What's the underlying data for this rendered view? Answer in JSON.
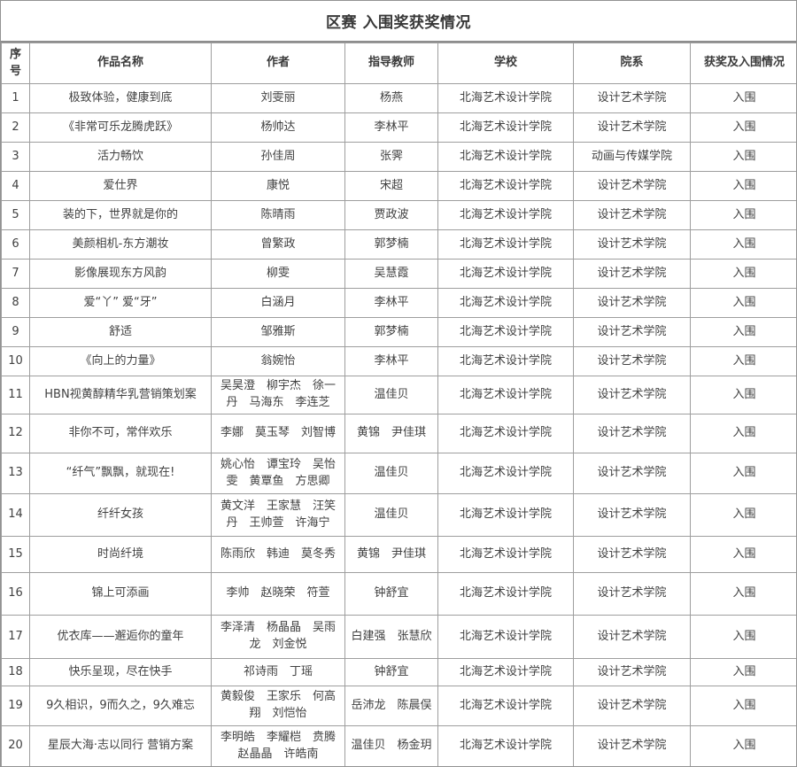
{
  "title": "区赛 入围奖获奖情况",
  "colors": {
    "background": "#ffffff",
    "text": "#3f3f3f",
    "grid_border": "#9e9e9e",
    "outer_border": "#929292"
  },
  "table": {
    "headers": [
      "序号",
      "作品名称",
      "作者",
      "指导教师",
      "学校",
      "院系",
      "获奖及入围情况"
    ],
    "rows": [
      [
        "1",
        "极致体验，健康到底",
        "刘雯丽",
        "杨燕",
        "北海艺术设计学院",
        "设计艺术学院",
        "入围"
      ],
      [
        "2",
        "《非常可乐龙腾虎跃》",
        "杨帅达",
        "李林平",
        "北海艺术设计学院",
        "设计艺术学院",
        "入围"
      ],
      [
        "3",
        "活力畅饮",
        "孙佳周",
        "张霁",
        "北海艺术设计学院",
        "动画与传媒学院",
        "入围"
      ],
      [
        "4",
        "爱仕界",
        "康悦",
        "宋超",
        "北海艺术设计学院",
        "设计艺术学院",
        "入围"
      ],
      [
        "5",
        "装的下，世界就是你的",
        "陈晴雨",
        "贾政波",
        "北海艺术设计学院",
        "设计艺术学院",
        "入围"
      ],
      [
        "6",
        "美颜相机-东方潮妆",
        "曾繁政",
        "郭梦楠",
        "北海艺术设计学院",
        "设计艺术学院",
        "入围"
      ],
      [
        "7",
        "影像展现东方风韵",
        "柳雯",
        "吴慧霞",
        "北海艺术设计学院",
        "设计艺术学院",
        "入围"
      ],
      [
        "8",
        "爱“丫” 爱“牙”",
        "白涵月",
        "李林平",
        "北海艺术设计学院",
        "设计艺术学院",
        "入围"
      ],
      [
        "9",
        "舒适",
        "邹雅斯",
        "郭梦楠",
        "北海艺术设计学院",
        "设计艺术学院",
        "入围"
      ],
      [
        "10",
        "《向上的力量》",
        "翁婉怡",
        "李林平",
        "北海艺术设计学院",
        "设计艺术学院",
        "入围"
      ],
      [
        "11",
        "HBN视黄醇精华乳营销策划案",
        "吴昊澄　柳宇杰　徐一丹　马海东　李连芝",
        "温佳贝",
        "北海艺术设计学院",
        "设计艺术学院",
        "入围"
      ],
      [
        "12",
        "非你不可，常伴欢乐",
        "李娜　莫玉琴　刘智博",
        "黄锦　尹佳琪",
        "北海艺术设计学院",
        "设计艺术学院",
        "入围"
      ],
      [
        "13",
        "“纤气”飘飘，就现在!",
        "姚心怡　谭宝玲　吴怡雯　黄覃鱼　方思卿",
        "温佳贝",
        "北海艺术设计学院",
        "设计艺术学院",
        "入围"
      ],
      [
        "14",
        "纤纤女孩",
        "黄文洋　王家慧　汪笑丹　王帅萱　许海宁",
        "温佳贝",
        "北海艺术设计学院",
        "设计艺术学院",
        "入围"
      ],
      [
        "15",
        "时尚纤境",
        "陈雨欣　韩迪　莫冬秀",
        "黄锦　尹佳琪",
        "北海艺术设计学院",
        "设计艺术学院",
        "入围"
      ],
      [
        "16",
        "锦上可添画",
        "李帅　赵晓荣　符萱",
        "钟舒宜",
        "北海艺术设计学院",
        "设计艺术学院",
        "入围"
      ],
      [
        "17",
        "优衣库——邂逅你的童年",
        "李泽清　杨晶晶　吴雨龙　刘金悦",
        "白建强　张慧欣",
        "北海艺术设计学院",
        "设计艺术学院",
        "入围"
      ],
      [
        "18",
        "快乐呈现，尽在快手",
        "祁诗雨　丁瑶",
        "钟舒宜",
        "北海艺术设计学院",
        "设计艺术学院",
        "入围"
      ],
      [
        "19",
        "9久相识，9而久之，9久难忘",
        "黄毅俊　王家乐　何高翔　刘恺怡",
        "岳沛龙　陈晨俣",
        "北海艺术设计学院",
        "设计艺术学院",
        "入围"
      ],
      [
        "20",
        "星辰大海·志以同行 营销方案",
        "李明皓　李耀桤　贲腾　赵晶晶　许皓南",
        "温佳贝　杨金玥",
        "北海艺术设计学院",
        "设计艺术学院",
        "入围"
      ]
    ]
  }
}
